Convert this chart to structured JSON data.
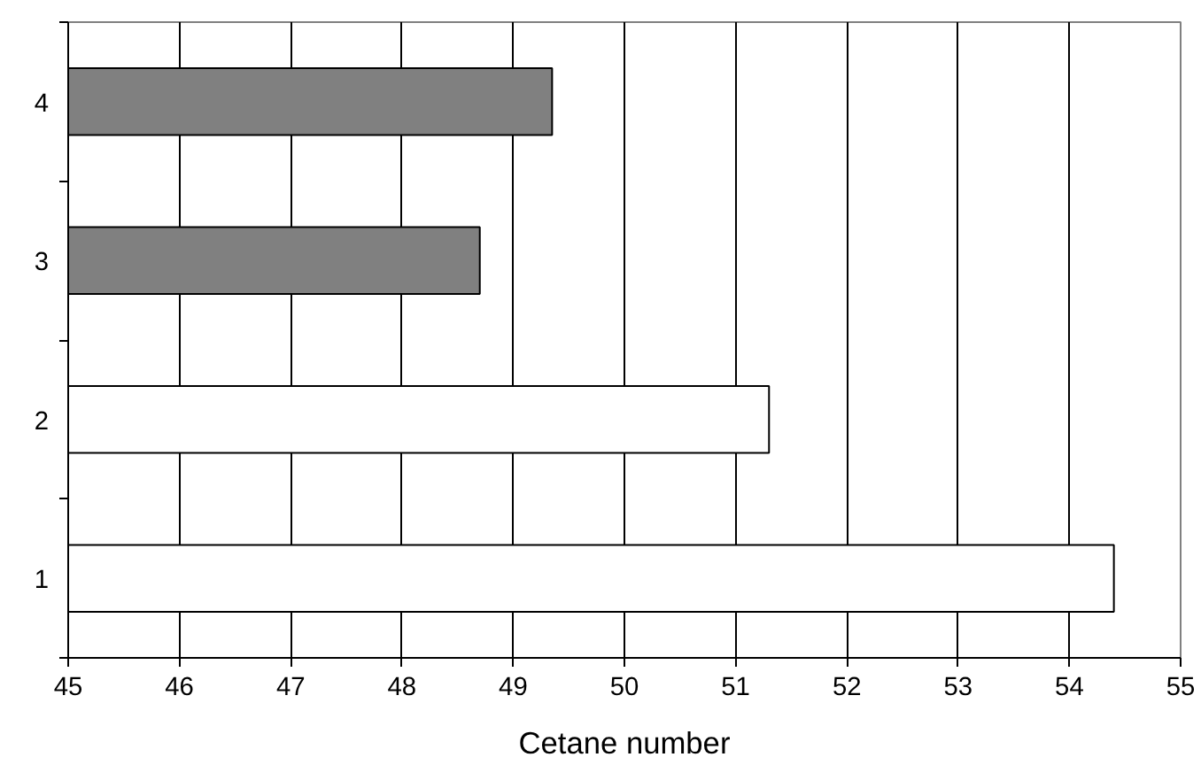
{
  "chart_data": {
    "type": "bar",
    "orientation": "horizontal",
    "categories": [
      "4",
      "3",
      "2",
      "1"
    ],
    "values": [
      49.35,
      48.7,
      51.3,
      54.4
    ],
    "colors": [
      "#808080",
      "#808080",
      "#ffffff",
      "#ffffff"
    ],
    "xlim": [
      45,
      55
    ],
    "xticks": [
      45,
      46,
      47,
      48,
      49,
      50,
      51,
      52,
      53,
      54,
      55
    ],
    "xlabel": "Cetane number",
    "grid": "x"
  }
}
